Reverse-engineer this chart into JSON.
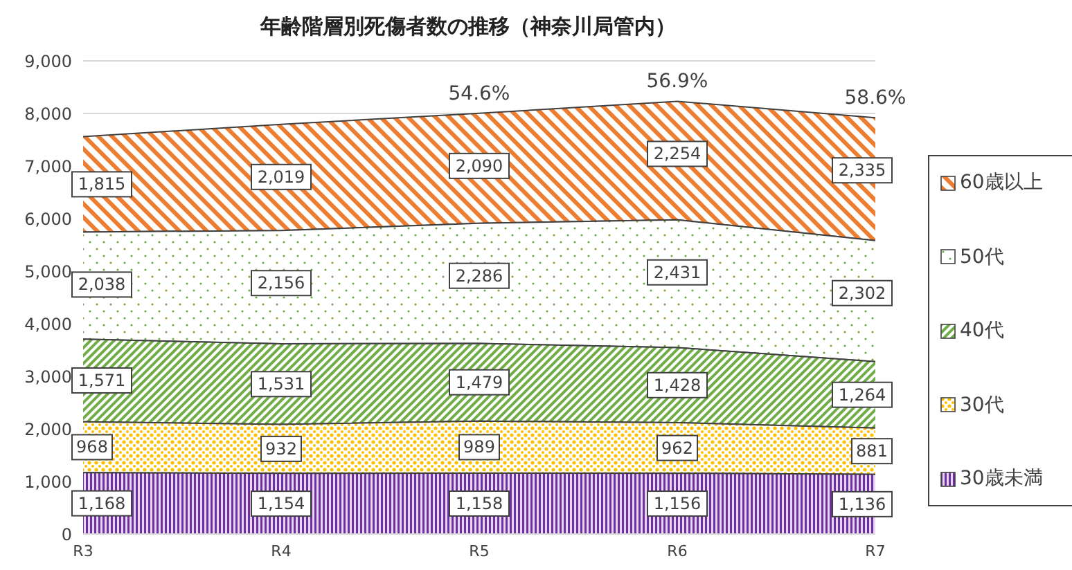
{
  "chart_data": {
    "type": "area",
    "stacked": true,
    "title": "年齢階層別死傷者数の推移（神奈川局管内）",
    "categories": [
      "R3",
      "R4",
      "R5",
      "R6",
      "R7"
    ],
    "series": [
      {
        "name": "30歳未満",
        "color": "#7030a0",
        "values": [
          1168,
          1154,
          1158,
          1156,
          1136
        ],
        "value_labels": [
          "1,168",
          "1,154",
          "1,158",
          "1,156",
          "1,136"
        ]
      },
      {
        "name": "30代",
        "color": "#ffc000",
        "values": [
          968,
          932,
          989,
          962,
          881
        ],
        "value_labels": [
          "968",
          "932",
          "989",
          "962",
          "881"
        ]
      },
      {
        "name": "40代",
        "color": "#70ad47",
        "values": [
          1571,
          1531,
          1479,
          1428,
          1264
        ],
        "value_labels": [
          "1,571",
          "1,531",
          "1,479",
          "1,428",
          "1,264"
        ]
      },
      {
        "name": "50代",
        "color": "#70ad47",
        "values": [
          2038,
          2156,
          2286,
          2431,
          2302
        ],
        "value_labels": [
          "2,038",
          "2,156",
          "2,286",
          "2,431",
          "2,302"
        ]
      },
      {
        "name": "60歳以上",
        "color": "#ed7d31",
        "values": [
          1815,
          2019,
          2090,
          2254,
          2335
        ],
        "value_labels": [
          "1,815",
          "2,019",
          "2,090",
          "2,254",
          "2,335"
        ]
      }
    ],
    "ylim": [
      0,
      9000
    ],
    "yticks": [
      {
        "value": 0,
        "label": "0"
      },
      {
        "value": 1000,
        "label": "1,000"
      },
      {
        "value": 2000,
        "label": "2,000"
      },
      {
        "value": 3000,
        "label": "3,000"
      },
      {
        "value": 4000,
        "label": "4,000"
      },
      {
        "value": 5000,
        "label": "5,000"
      },
      {
        "value": 6000,
        "label": "6,000"
      },
      {
        "value": 7000,
        "label": "7,000"
      },
      {
        "value": 8000,
        "label": "8,000"
      },
      {
        "value": 9000,
        "label": "9,000"
      }
    ],
    "grid": "y",
    "legend": "right",
    "annotations": [
      "54.6%",
      "56.9%",
      "58.6%"
    ]
  }
}
